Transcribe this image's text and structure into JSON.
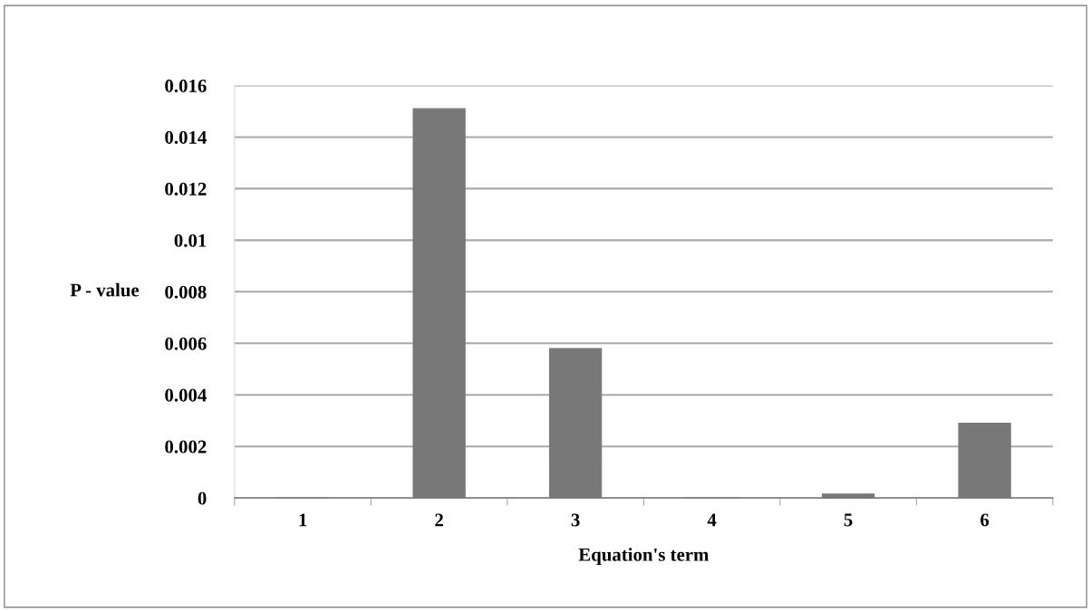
{
  "chart_data": {
    "type": "bar",
    "xlabel": "Equation's term",
    "ylabel": "P - value",
    "categories": [
      "1",
      "2",
      "3",
      "4",
      "5",
      "6"
    ],
    "values": [
      0,
      0.0151,
      0.0058,
      0,
      0.00015,
      0.0029
    ],
    "color": "#787878",
    "ylim": [
      0,
      0.016
    ],
    "yticks": [
      "0",
      0.002,
      0.004,
      0.006,
      0.008,
      0.01,
      0.012,
      0.014,
      0.016
    ],
    "grid": "y"
  }
}
